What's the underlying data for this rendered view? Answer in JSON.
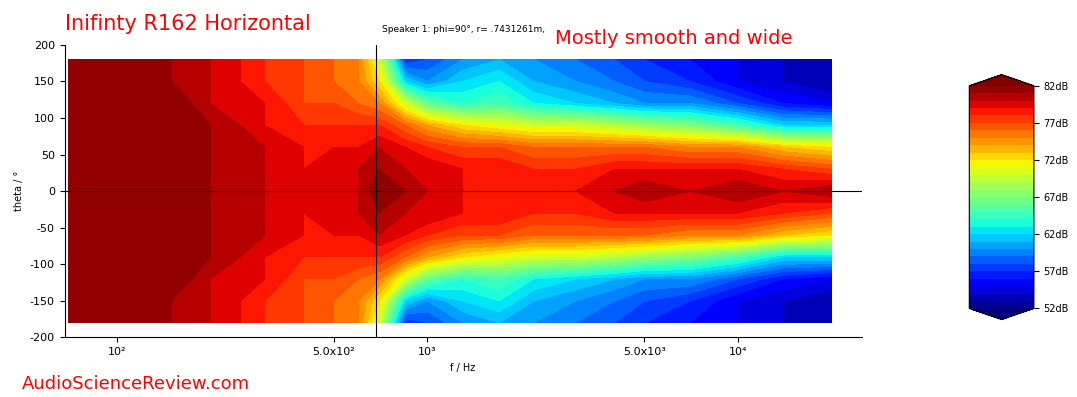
{
  "chart_data": {
    "type": "contour",
    "title": "Inifinty R162 Horizontal",
    "subtitle": "Speaker 1: phi=90°, r= .7431261m,",
    "annotations": [
      "Mostly smooth and wide",
      "AudioScienceReview.com"
    ],
    "x_label": "f / Hz",
    "y_label": "theta / °",
    "log": "x",
    "x": [
      70,
      100,
      150,
      200,
      300,
      400,
      500,
      600,
      700,
      850,
      1000,
      1300,
      1700,
      2200,
      3000,
      4000,
      5000,
      7000,
      10000,
      14000,
      20000
    ],
    "y": [
      -180,
      -150,
      -120,
      -90,
      -60,
      -30,
      0,
      30,
      60,
      90,
      120,
      150,
      180
    ],
    "values": [
      [
        82,
        82,
        81,
        80,
        78,
        77,
        76,
        75,
        70,
        57,
        58,
        60,
        61,
        60,
        59,
        58,
        57,
        56,
        55,
        54,
        53
      ],
      [
        82,
        82,
        81,
        80,
        78,
        77,
        76,
        75,
        72,
        62,
        60,
        62,
        63,
        61,
        60,
        59,
        58,
        57,
        55,
        54,
        53
      ],
      [
        82,
        82,
        82,
        80,
        79,
        77,
        77,
        76,
        75,
        70,
        66,
        64,
        65,
        63,
        62,
        61,
        60,
        60,
        58,
        56,
        55
      ],
      [
        82,
        82,
        82,
        81,
        79,
        78,
        78,
        78,
        78,
        76,
        74,
        72,
        71,
        70,
        70,
        69,
        68,
        67,
        65,
        62,
        62
      ],
      [
        82,
        82,
        82,
        81,
        80,
        79,
        79,
        79,
        80,
        79,
        78,
        77,
        77,
        76,
        76,
        76,
        76,
        75,
        75,
        73,
        72
      ],
      [
        82,
        82,
        82,
        81,
        80,
        79,
        80,
        80,
        81,
        80,
        80,
        79,
        79,
        78,
        78,
        79,
        79,
        79,
        79,
        78,
        77
      ],
      [
        82,
        82,
        82,
        81,
        80,
        79,
        80,
        80,
        82,
        81,
        80,
        79,
        79,
        79,
        79,
        80,
        81,
        80,
        81,
        80,
        81
      ],
      [
        82,
        82,
        82,
        81,
        80,
        79,
        80,
        80,
        81,
        80,
        80,
        79,
        79,
        78,
        78,
        79,
        79,
        79,
        79,
        78,
        77
      ],
      [
        82,
        82,
        82,
        81,
        80,
        79,
        79,
        79,
        80,
        79,
        78,
        77,
        77,
        76,
        76,
        76,
        76,
        75,
        75,
        73,
        72
      ],
      [
        82,
        82,
        82,
        81,
        79,
        78,
        78,
        78,
        78,
        76,
        74,
        72,
        71,
        70,
        70,
        69,
        68,
        67,
        65,
        62,
        62
      ],
      [
        82,
        82,
        82,
        80,
        79,
        77,
        77,
        76,
        75,
        70,
        66,
        64,
        65,
        63,
        62,
        61,
        60,
        60,
        58,
        56,
        55
      ],
      [
        82,
        82,
        81,
        80,
        78,
        77,
        76,
        75,
        72,
        62,
        60,
        62,
        63,
        61,
        60,
        59,
        58,
        57,
        55,
        54,
        53
      ],
      [
        82,
        82,
        81,
        80,
        78,
        77,
        76,
        75,
        70,
        57,
        58,
        60,
        61,
        60,
        59,
        58,
        57,
        56,
        55,
        54,
        53
      ]
    ],
    "xlim": [
      68,
      25000
    ],
    "ylim": [
      -200,
      200
    ],
    "xticks": [
      {
        "value": 100,
        "label": "10²"
      },
      {
        "value": 500,
        "label": "5.0x10²"
      },
      {
        "value": 1000,
        "label": "10³"
      },
      {
        "value": 5000,
        "label": "5.0x10³"
      },
      {
        "value": 10000,
        "label": "10⁴"
      }
    ],
    "yticks": [
      -200,
      -150,
      -100,
      -50,
      0,
      50,
      100,
      150,
      200
    ],
    "colorbar_range": [
      52,
      82
    ],
    "colorbar_ticks": [
      {
        "value": 52,
        "label": "52dB"
      },
      {
        "value": 57,
        "label": "57dB"
      },
      {
        "value": 62,
        "label": "62dB"
      },
      {
        "value": 67,
        "label": "67dB"
      },
      {
        "value": 72,
        "label": "72dB"
      },
      {
        "value": 77,
        "label": "77dB"
      },
      {
        "value": 82,
        "label": "82dB"
      }
    ],
    "cursor": {
      "x": 684,
      "y": 0
    }
  }
}
